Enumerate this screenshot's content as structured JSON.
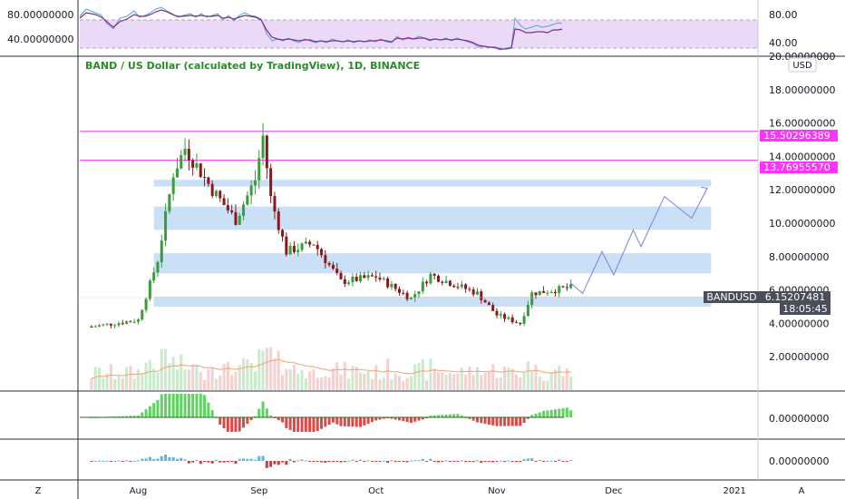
{
  "title": "BAND / US Dollar (calculated by TradingView), 1D, BINANCE",
  "currency_badge": "USD",
  "corner_left": "Z",
  "corner_right": "A",
  "rsi_axis": [
    "80.00",
    "40.00"
  ],
  "rsi_left_labels": [
    "80.00000000",
    "40.00000000"
  ],
  "price_axis": [
    "20.00000000",
    "18.00000000",
    "16.00000000",
    "14.00000000",
    "12.00000000",
    "10.00000000",
    "8.00000000",
    "6.00000000",
    "4.00000000",
    "2.00000000"
  ],
  "macd_axis": "0.00000000",
  "osc_axis": "0.00000000",
  "x_labels": [
    "Aug",
    "Sep",
    "Oct",
    "Nov",
    "Dec",
    "2021"
  ],
  "price_tags": {
    "line1": "15.50296389",
    "line2": "13.76955570",
    "symbol": "BANDUSD",
    "last": "6.15207481",
    "timer": "18:05:45"
  },
  "colors": {
    "up": "#3a9c3a",
    "down": "#8a1a1a",
    "zone": "#9ec7ef",
    "magenta": "#ff33ff",
    "projection": "#7b7fe0",
    "rsi_band": "#ebd9f7",
    "volume_ma": "#f0a070",
    "macd_up": "#5fd35f",
    "macd_down": "#e04848",
    "symbol_tag": "#4a4e5a"
  },
  "chart_data": {
    "type": "candlestick",
    "symbol": "BANDUSD",
    "timeframe": "1D",
    "exchange": "BINANCE",
    "ylim": [
      0,
      20
    ],
    "x_range": [
      "2020-07-17",
      "2021-01-07"
    ],
    "horizontal_lines": [
      15.50296389,
      13.7695557
    ],
    "zones": [
      {
        "low": 12.2,
        "high": 12.6
      },
      {
        "low": 9.6,
        "high": 11.0
      },
      {
        "low": 7.0,
        "high": 8.2
      },
      {
        "low": 5.0,
        "high": 5.6
      }
    ],
    "last_price": 6.15207481,
    "price_key": [
      {
        "date": "2020-07-20",
        "close": 3.8
      },
      {
        "date": "2020-08-01",
        "close": 4.2
      },
      {
        "date": "2020-08-06",
        "close": 7.8
      },
      {
        "date": "2020-08-10",
        "close": 13.0
      },
      {
        "date": "2020-08-13",
        "close": 14.5
      },
      {
        "date": "2020-08-20",
        "close": 12.0
      },
      {
        "date": "2020-08-26",
        "close": 10.2
      },
      {
        "date": "2020-08-31",
        "close": 12.6
      },
      {
        "date": "2020-09-02",
        "close": 15.2
      },
      {
        "date": "2020-09-04",
        "close": 11.5
      },
      {
        "date": "2020-09-08",
        "close": 8.3
      },
      {
        "date": "2020-09-15",
        "close": 8.8
      },
      {
        "date": "2020-09-22",
        "close": 6.5
      },
      {
        "date": "2020-10-01",
        "close": 6.8
      },
      {
        "date": "2020-10-10",
        "close": 5.5
      },
      {
        "date": "2020-10-15",
        "close": 6.9
      },
      {
        "date": "2020-10-27",
        "close": 5.8
      },
      {
        "date": "2020-11-01",
        "close": 4.5
      },
      {
        "date": "2020-11-07",
        "close": 4.0
      },
      {
        "date": "2020-11-10",
        "close": 5.8
      },
      {
        "date": "2020-11-20",
        "close": 6.15
      }
    ],
    "projection": [
      {
        "date": "2020-11-20",
        "value": 6.4
      },
      {
        "date": "2020-11-23",
        "value": 5.8
      },
      {
        "date": "2020-11-28",
        "value": 8.3
      },
      {
        "date": "2020-12-01",
        "value": 6.9
      },
      {
        "date": "2020-12-06",
        "value": 9.6
      },
      {
        "date": "2020-12-08",
        "value": 8.6
      },
      {
        "date": "2020-12-14",
        "value": 11.6
      },
      {
        "date": "2020-12-21",
        "value": 10.3
      },
      {
        "date": "2020-12-25",
        "value": 12.1
      }
    ]
  }
}
